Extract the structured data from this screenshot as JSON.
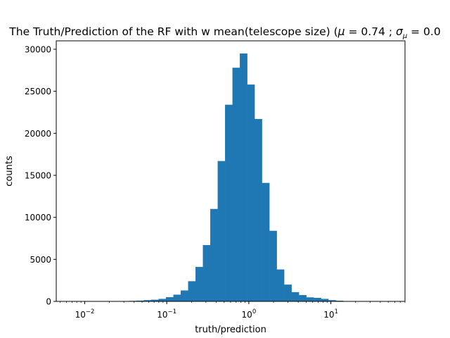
{
  "chart_data": {
    "type": "bar",
    "title_main": "The Truth/Prediction of the RF with w mean(telescope size) (",
    "title_mu_symbol": "μ",
    "title_mu_value": " = 0.74 ; ",
    "title_sigma_symbol": "σ",
    "title_sigma_subscript": "μ",
    "title_sigma_value": " = 0.0",
    "xlabel": "truth/prediction",
    "ylabel": "counts",
    "x_scale": "log",
    "xlim": [
      0.0045,
      80
    ],
    "ylim": [
      0,
      31000
    ],
    "y_ticks": [
      0,
      5000,
      10000,
      15000,
      20000,
      25000,
      30000
    ],
    "y_tick_labels": [
      "0",
      "5000",
      "10000",
      "15000",
      "20000",
      "25000",
      "30000"
    ],
    "x_major_ticks": [
      0.01,
      0.1,
      1,
      10
    ],
    "x_tick_bases": [
      "10",
      "10",
      "10",
      "10"
    ],
    "x_tick_exponents": [
      "−2",
      "−1",
      "0",
      "1"
    ],
    "bar_color": "#1f77b4",
    "bin_edges": [
      0.0282,
      0.0347,
      0.0427,
      0.0525,
      0.0646,
      0.0794,
      0.0977,
      0.1202,
      0.1479,
      0.182,
      0.2239,
      0.2754,
      0.3388,
      0.4169,
      0.5129,
      0.631,
      0.7762,
      0.955,
      1.1749,
      1.4454,
      1.7783,
      2.1878,
      2.6915,
      3.3113,
      4.0738,
      5.0119,
      6.166,
      7.5858,
      9.3325,
      11.4815,
      14.1254,
      17.378
    ],
    "counts": [
      40,
      60,
      90,
      150,
      200,
      300,
      500,
      800,
      1300,
      2400,
      4100,
      6700,
      11000,
      16700,
      23400,
      27800,
      29500,
      25800,
      21700,
      14100,
      8400,
      3800,
      2000,
      1100,
      750,
      480,
      420,
      300,
      150,
      80,
      40
    ]
  }
}
